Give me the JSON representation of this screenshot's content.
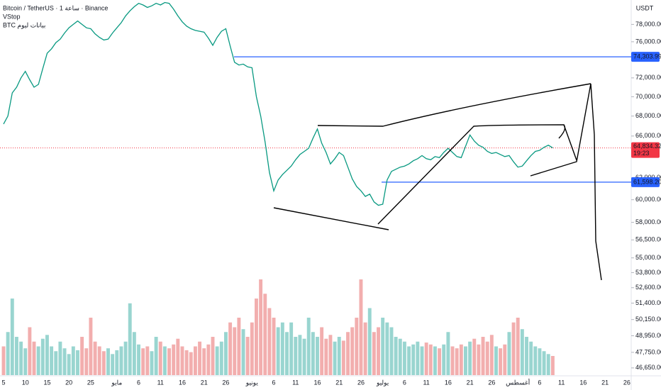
{
  "chart_data": {
    "type": "line",
    "title": "Bitcoin / TetherUS · 1 ساعة · Binance",
    "indicator": "VStop",
    "source_note": "BTC بيانات ليوم",
    "currency": "USDT",
    "log_scale": true,
    "ylim": [
      46150,
      80900
    ],
    "yticks": [
      {
        "value": 46650,
        "label": "46,650.00"
      },
      {
        "value": 47750,
        "label": "47,750.00"
      },
      {
        "value": 48950,
        "label": "48,950.00"
      },
      {
        "value": 50150,
        "label": "50,150.00"
      },
      {
        "value": 51400,
        "label": "51,400.00"
      },
      {
        "value": 52600,
        "label": "52,600.00"
      },
      {
        "value": 53800,
        "label": "53,800.00"
      },
      {
        "value": 55000,
        "label": "55,000.00"
      },
      {
        "value": 56500,
        "label": "56,500.00"
      },
      {
        "value": 58000,
        "label": "58,000.00"
      },
      {
        "value": 60000,
        "label": "60,000.00"
      },
      {
        "value": 62000,
        "label": "62,000.00"
      },
      {
        "value": 66000,
        "label": "66,000.00"
      },
      {
        "value": 68000,
        "label": "68,000.00"
      },
      {
        "value": 70000,
        "label": "70,000.00"
      },
      {
        "value": 72000,
        "label": "72,000.00"
      },
      {
        "value": 76000,
        "label": "76,000.00"
      },
      {
        "value": 78000,
        "label": "78,000.00"
      }
    ],
    "categories": [
      "5",
      null,
      null,
      null,
      null,
      "10",
      null,
      null,
      null,
      null,
      "15",
      null,
      null,
      null,
      null,
      "20",
      null,
      null,
      null,
      null,
      "25",
      null,
      null,
      null,
      null,
      null,
      "مايو",
      null,
      null,
      null,
      null,
      "6",
      null,
      null,
      null,
      null,
      "11",
      null,
      null,
      null,
      null,
      "16",
      null,
      null,
      null,
      null,
      "21",
      null,
      null,
      null,
      null,
      "26",
      null,
      null,
      null,
      null,
      null,
      "يونيو",
      null,
      null,
      null,
      null,
      "6",
      null,
      null,
      null,
      null,
      "11",
      null,
      null,
      null,
      null,
      "16",
      null,
      null,
      null,
      null,
      "21",
      null,
      null,
      null,
      null,
      "26",
      null,
      null,
      null,
      null,
      "يوليو",
      null,
      null,
      null,
      null,
      "6",
      null,
      null,
      null,
      null,
      "11",
      null,
      null,
      null,
      null,
      "16",
      null,
      null,
      null,
      null,
      "21",
      null,
      null,
      null,
      null,
      "26",
      null,
      null,
      null,
      null,
      null,
      "أغسطس",
      null,
      null,
      null,
      null,
      "6",
      null,
      null,
      null,
      null,
      "11",
      null,
      null,
      null,
      null,
      "16",
      null,
      null,
      null,
      null,
      "21",
      null,
      null,
      null,
      null,
      "26",
      null
    ],
    "series": [
      {
        "name": "BTCUSDT",
        "color": "#089981",
        "values": [
          67200,
          68000,
          70400,
          71000,
          72000,
          72700,
          71800,
          71000,
          71300,
          73000,
          74700,
          75200,
          75900,
          76300,
          77000,
          77600,
          78000,
          78400,
          78000,
          77600,
          77500,
          76900,
          76500,
          76200,
          76300,
          77000,
          77600,
          78200,
          79000,
          79600,
          80100,
          80500,
          80300,
          80000,
          80200,
          80500,
          80300,
          80600,
          80500,
          79800,
          79000,
          78300,
          77800,
          77500,
          77300,
          77200,
          77100,
          76400,
          75600,
          76500,
          77200,
          77500,
          75500,
          73700,
          73400,
          73500,
          73200,
          73100,
          70000,
          68000,
          65400,
          62500,
          60800,
          61800,
          62300,
          62700,
          63100,
          63700,
          64200,
          64500,
          64800,
          65800,
          66700,
          65300,
          64400,
          63300,
          63800,
          64400,
          64100,
          63000,
          61900,
          61200,
          60800,
          60300,
          60500,
          59800,
          59500,
          59600,
          61800,
          62600,
          62800,
          63000,
          63100,
          63300,
          63600,
          63800,
          64100,
          63800,
          63700,
          64000,
          63900,
          64400,
          64800,
          64400,
          64000,
          63900,
          65000,
          66100,
          65500,
          65100,
          64900,
          64500,
          64300,
          64400,
          64200,
          64000,
          64100,
          63500,
          63000,
          63100,
          63600,
          64100,
          64500,
          64600,
          64900,
          65100,
          64834.32,
          null,
          null,
          null,
          null,
          null,
          null,
          null,
          null,
          null,
          null,
          null,
          null,
          null,
          null,
          null,
          null,
          null,
          null
        ]
      },
      {
        "name": "Volume",
        "color": "#ef9a9a",
        "values": [
          30,
          45,
          80,
          40,
          35,
          28,
          50,
          35,
          30,
          38,
          42,
          30,
          25,
          35,
          28,
          22,
          30,
          26,
          40,
          28,
          60,
          35,
          30,
          25,
          28,
          22,
          26,
          30,
          35,
          75,
          45,
          32,
          28,
          30,
          25,
          40,
          35,
          30,
          28,
          32,
          38,
          30,
          26,
          24,
          30,
          35,
          28,
          32,
          40,
          30,
          35,
          45,
          55,
          50,
          60,
          48,
          40,
          55,
          80,
          100,
          85,
          70,
          60,
          50,
          55,
          45,
          55,
          40,
          42,
          38,
          60,
          45,
          40,
          50,
          38,
          42,
          35,
          40,
          36,
          45,
          50,
          60,
          100,
          55,
          70,
          45,
          50,
          60,
          55,
          50,
          40,
          38,
          35,
          30,
          32,
          35,
          30,
          34,
          32,
          30,
          28,
          32,
          45,
          30,
          28,
          32,
          30,
          35,
          38,
          32,
          40,
          35,
          42,
          30,
          28,
          32,
          45,
          55,
          60,
          48,
          40,
          35,
          30,
          28,
          25,
          22,
          20,
          null,
          null,
          null,
          null,
          null,
          null,
          null,
          null,
          null,
          null,
          null,
          null,
          null,
          null,
          null,
          null,
          null,
          null
        ]
      }
    ],
    "hlines": [
      {
        "value": 74303.99,
        "label": "74,303.99",
        "color": "#2962ff"
      },
      {
        "value": 61598.2,
        "label": "61,598.20",
        "color": "#2962ff"
      }
    ],
    "last_price": {
      "value": 64834.32,
      "label": "64,834.32",
      "countdown": "19:23",
      "color": "#f23645"
    }
  }
}
